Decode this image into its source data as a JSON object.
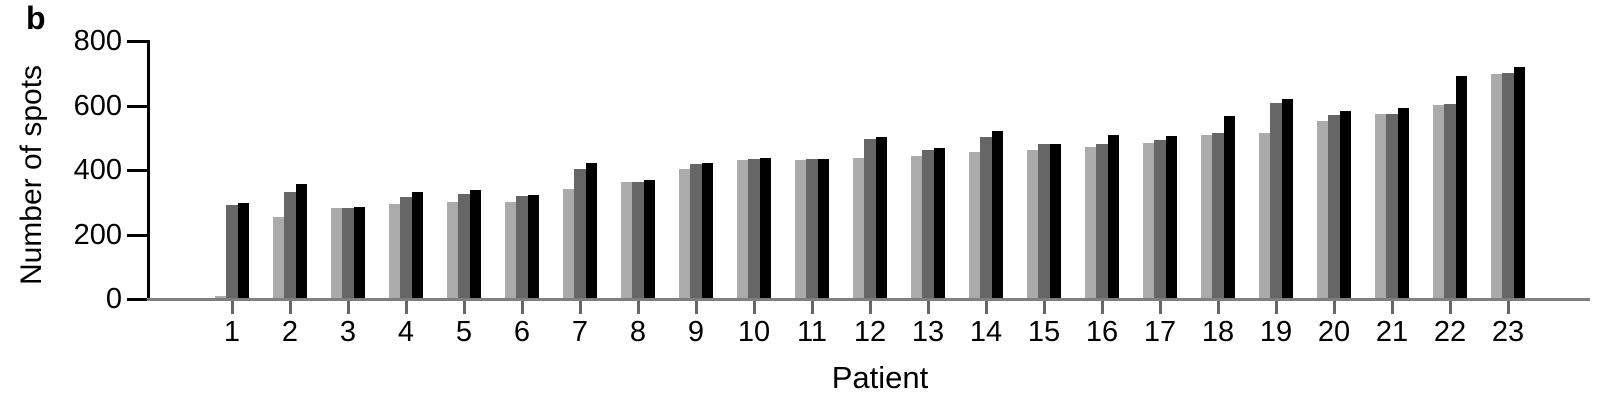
{
  "panel_label": "b",
  "chart_data": {
    "type": "bar",
    "title": "",
    "xlabel": "Patient",
    "ylabel": "Number of  spots",
    "categories": [
      "1",
      "2",
      "3",
      "4",
      "5",
      "6",
      "7",
      "8",
      "9",
      "10",
      "11",
      "12",
      "13",
      "14",
      "15",
      "16",
      "17",
      "18",
      "19",
      "20",
      "21",
      "22",
      "23"
    ],
    "series": [
      {
        "name": "series-1-light-gray",
        "color": "#ababab",
        "values": [
          5,
          251,
          278,
          290,
          297,
          297,
          338,
          359,
          399,
          427,
          428,
          433,
          440,
          453,
          460,
          467,
          482,
          504,
          512,
          548,
          569,
          598,
          694
        ]
      },
      {
        "name": "series-2-dark-gray",
        "color": "#666666",
        "values": [
          289,
          330,
          278,
          312,
          322,
          315,
          400,
          359,
          415,
          430,
          432,
          492,
          458,
          498,
          478,
          478,
          490,
          513,
          605,
          566,
          571,
          603,
          698
        ]
      },
      {
        "name": "series-3-black",
        "color": "#000000",
        "values": [
          294,
          353,
          283,
          328,
          334,
          318,
          418,
          366,
          419,
          435,
          432,
          498,
          465,
          517,
          478,
          505,
          501,
          563,
          616,
          579,
          590,
          687,
          716
        ]
      }
    ],
    "ylim": [
      0,
      800
    ],
    "yticks": [
      0,
      200,
      400,
      600,
      800
    ],
    "grid": false,
    "legend_position": "none",
    "axis_colors": {
      "y_axis": "#000000",
      "x_axis": "#7f7f7f"
    }
  }
}
